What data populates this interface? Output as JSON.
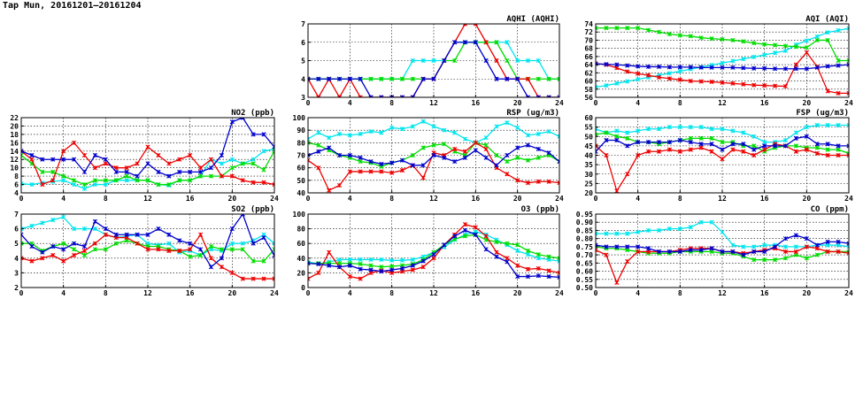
{
  "page": {
    "title": "Tap Mun, 20161201–20161204"
  },
  "colors": {
    "cyan": "#00e5ee",
    "green": "#00dd00",
    "red": "#ee0000",
    "blue": "#0000cc",
    "grid": "#000000"
  },
  "chart_data": [
    {
      "id": "aqhi",
      "type": "line",
      "title": "AQHI (AQHI)",
      "xlim": [
        0,
        24
      ],
      "ylim": [
        3,
        7
      ],
      "xticks": [
        0,
        4,
        8,
        12,
        16,
        20,
        24
      ],
      "yticks": [
        3,
        4,
        5,
        6,
        7
      ],
      "series": [
        {
          "color": "cyan",
          "y": [
            4,
            4,
            4,
            4,
            4,
            4,
            4,
            4,
            4,
            4,
            5,
            5,
            5,
            5,
            6,
            6,
            6,
            6,
            6,
            6,
            5,
            5,
            5,
            4,
            4
          ]
        },
        {
          "color": "green",
          "y": [
            4,
            4,
            4,
            4,
            4,
            4,
            4,
            4,
            4,
            4,
            4,
            4,
            4,
            5,
            5,
            6,
            6,
            6,
            6,
            5,
            4,
            4,
            4,
            4,
            4
          ]
        },
        {
          "color": "red",
          "y": [
            4,
            3,
            4,
            3,
            4,
            3,
            3,
            3,
            3,
            3,
            3,
            4,
            4,
            5,
            6,
            7,
            7,
            6,
            5,
            4,
            4,
            4,
            3,
            3,
            3
          ]
        },
        {
          "color": "blue",
          "y": [
            4,
            4,
            4,
            4,
            4,
            4,
            3,
            3,
            3,
            3,
            3,
            4,
            4,
            5,
            6,
            6,
            6,
            5,
            4,
            4,
            4,
            3,
            3,
            3,
            3
          ]
        }
      ]
    },
    {
      "id": "aqi",
      "type": "line",
      "title": "AQI (AQI)",
      "xlim": [
        0,
        24
      ],
      "ylim": [
        56,
        74
      ],
      "xticks": [
        0,
        4,
        8,
        12,
        16,
        20,
        24
      ],
      "yticks": [
        56,
        58,
        60,
        62,
        64,
        66,
        68,
        70,
        72,
        74
      ],
      "series": [
        {
          "color": "cyan",
          "y": [
            58.5,
            58.9,
            59.4,
            59.9,
            60.4,
            60.9,
            61.4,
            61.9,
            62.4,
            62.9,
            63.4,
            63.9,
            64.4,
            64.9,
            65.4,
            65.9,
            66.4,
            66.9,
            67.4,
            68.9,
            69.9,
            70.9,
            71.9,
            72.4,
            72.9
          ]
        },
        {
          "color": "green",
          "y": [
            73,
            73,
            73,
            73,
            73,
            72.5,
            72,
            71.5,
            71.2,
            71,
            70.6,
            70.4,
            70.2,
            70,
            69.7,
            69.3,
            69,
            68.8,
            68.6,
            68.4,
            68.2,
            70,
            70,
            65,
            65
          ]
        },
        {
          "color": "red",
          "y": [
            64.3,
            64,
            63.2,
            62.3,
            61.8,
            61.4,
            60.9,
            60.6,
            60.3,
            60,
            59.9,
            59.8,
            59.6,
            59.4,
            59.2,
            59,
            58.9,
            58.8,
            58.7,
            64,
            67,
            63.5,
            57.5,
            57,
            57
          ]
        },
        {
          "color": "blue",
          "y": [
            64.2,
            64.1,
            64,
            63.8,
            63.6,
            63.5,
            63.5,
            63.4,
            63.4,
            63.4,
            63.3,
            63.3,
            63.3,
            63.3,
            63.2,
            63.1,
            63.1,
            63,
            63,
            63,
            63,
            63.3,
            63.6,
            63.8,
            64
          ]
        }
      ]
    },
    {
      "id": "no2",
      "type": "line",
      "title": "NO2 (ppb)",
      "xlim": [
        0,
        24
      ],
      "ylim": [
        4,
        22
      ],
      "xticks": [
        0,
        4,
        8,
        12,
        16,
        20,
        24
      ],
      "yticks": [
        4,
        6,
        8,
        10,
        12,
        14,
        16,
        18,
        20,
        22
      ],
      "series": [
        {
          "color": "cyan",
          "y": [
            6.2,
            6,
            6.4,
            6.7,
            7,
            6,
            5,
            6,
            6,
            7,
            7,
            7,
            7,
            6,
            5.8,
            7,
            7,
            8,
            12,
            11,
            12,
            11,
            12,
            14,
            14.5
          ]
        },
        {
          "color": "green",
          "y": [
            13,
            11,
            9,
            9,
            8,
            7,
            6,
            7,
            7,
            7,
            8,
            7,
            7,
            6,
            6,
            7,
            7,
            8,
            8,
            8,
            10,
            11,
            11,
            9.5,
            14
          ]
        },
        {
          "color": "red",
          "y": [
            14,
            12,
            6,
            7,
            14,
            16,
            13,
            10,
            11,
            10,
            10,
            11,
            15,
            13,
            11,
            12,
            13,
            10,
            12,
            8,
            8,
            7,
            6.5,
            6.5,
            6
          ]
        },
        {
          "color": "blue",
          "y": [
            14,
            13,
            12,
            12,
            12,
            12,
            9,
            13,
            12,
            9,
            9,
            8,
            11,
            9,
            8,
            9,
            9,
            9,
            10,
            13,
            21,
            22,
            18,
            18,
            15
          ]
        }
      ]
    },
    {
      "id": "rsp",
      "type": "line",
      "title": "RSP (ug/m3)",
      "xlim": [
        0,
        24
      ],
      "ylim": [
        40,
        100
      ],
      "xticks": [
        0,
        4,
        8,
        12,
        16,
        20,
        24
      ],
      "yticks": [
        40,
        50,
        60,
        70,
        80,
        90,
        100
      ],
      "series": [
        {
          "color": "cyan",
          "y": [
            83,
            88,
            84,
            87,
            86,
            87,
            89,
            88,
            92,
            91,
            93,
            97,
            93,
            90,
            88,
            83,
            80,
            84,
            93,
            96,
            92,
            86,
            87,
            89,
            85
          ]
        },
        {
          "color": "green",
          "y": [
            80,
            78,
            74,
            70,
            68,
            65,
            64,
            61,
            64,
            66,
            70,
            76,
            78,
            79,
            73,
            70,
            80,
            78,
            70,
            65,
            68,
            66,
            68,
            70,
            65
          ]
        },
        {
          "color": "red",
          "y": [
            66,
            60,
            42,
            46,
            57,
            57,
            57,
            57,
            56,
            58,
            62,
            52,
            72,
            70,
            75,
            73,
            80,
            75,
            60,
            55,
            50,
            48,
            49,
            49,
            48
          ]
        },
        {
          "color": "blue",
          "y": [
            70,
            73,
            76,
            70,
            70,
            68,
            65,
            63,
            64,
            66,
            62,
            62,
            70,
            68,
            65,
            68,
            74,
            68,
            62,
            70,
            76,
            78,
            75,
            72,
            65
          ]
        }
      ]
    },
    {
      "id": "fsp",
      "type": "line",
      "title": "FSP (ug/m3)",
      "xlim": [
        0,
        24
      ],
      "ylim": [
        20,
        60
      ],
      "xticks": [
        0,
        4,
        8,
        12,
        16,
        20,
        24
      ],
      "yticks": [
        20,
        25,
        30,
        35,
        40,
        45,
        50,
        55,
        60
      ],
      "series": [
        {
          "color": "cyan",
          "y": [
            54,
            52,
            53,
            52,
            53,
            54,
            54,
            55,
            55,
            55,
            55,
            54,
            54,
            53,
            52,
            50,
            47,
            47,
            48,
            52,
            55,
            56,
            56,
            56,
            56
          ]
        },
        {
          "color": "green",
          "y": [
            51,
            52,
            50,
            49,
            47,
            47,
            46,
            47,
            48,
            49,
            49,
            49,
            47,
            47,
            45,
            45,
            42,
            44,
            45,
            45,
            44,
            44,
            43,
            43,
            41
          ]
        },
        {
          "color": "red",
          "y": [
            45,
            40,
            21,
            30,
            40,
            42,
            42,
            43,
            42,
            43,
            44,
            42,
            38,
            43,
            42,
            40,
            43,
            46,
            45,
            42,
            43,
            41,
            40,
            40,
            40
          ]
        },
        {
          "color": "blue",
          "y": [
            42,
            48,
            48,
            45,
            47,
            47,
            47,
            47,
            48,
            47,
            46,
            46,
            43,
            46,
            46,
            43,
            45,
            45,
            45,
            49,
            50,
            46,
            46,
            45,
            45
          ]
        }
      ]
    },
    {
      "id": "so2",
      "type": "line",
      "title": "SO2 (ppb)",
      "xlim": [
        0,
        24
      ],
      "ylim": [
        2,
        7
      ],
      "xticks": [
        0,
        4,
        8,
        12,
        16,
        20,
        24
      ],
      "yticks": [
        2,
        3,
        4,
        5,
        6,
        7
      ],
      "series": [
        {
          "color": "cyan",
          "y": [
            6,
            6.2,
            6.4,
            6.6,
            6.8,
            6,
            6,
            6,
            5.6,
            5.4,
            5.5,
            5.6,
            5,
            4.9,
            5,
            4.4,
            4.5,
            4.2,
            4.6,
            4.5,
            5,
            5,
            5.2,
            5.6,
            5
          ]
        },
        {
          "color": "green",
          "y": [
            5,
            5,
            4.5,
            4.8,
            5,
            4.6,
            4.2,
            4.6,
            4.6,
            5,
            5.2,
            5,
            4.8,
            4.8,
            4.6,
            4.5,
            4.1,
            4.2,
            4.8,
            4.6,
            4.6,
            4.6,
            3.8,
            3.8,
            4.6
          ]
        },
        {
          "color": "red",
          "y": [
            4,
            3.8,
            4,
            4.2,
            3.8,
            4.2,
            4.5,
            5,
            5.6,
            5.4,
            5.4,
            5,
            4.6,
            4.6,
            4.5,
            4.5,
            4.6,
            5.6,
            4,
            3.4,
            3,
            2.6,
            2.6,
            2.6,
            2.6
          ]
        },
        {
          "color": "blue",
          "y": [
            5.6,
            4.8,
            4.4,
            4.8,
            4.6,
            5,
            4.8,
            6.5,
            6,
            5.6,
            5.6,
            5.6,
            5.6,
            6,
            5.6,
            5.2,
            5,
            4.6,
            3.4,
            4,
            6,
            7,
            5,
            5.4,
            4.2
          ]
        }
      ]
    },
    {
      "id": "o3",
      "type": "line",
      "title": "O3 (ppb)",
      "xlim": [
        0,
        24
      ],
      "ylim": [
        0,
        100
      ],
      "xticks": [
        0,
        4,
        8,
        12,
        16,
        20,
        24
      ],
      "yticks": [
        0,
        20,
        40,
        60,
        80,
        100
      ],
      "series": [
        {
          "color": "cyan",
          "y": [
            35,
            32,
            35,
            38,
            38,
            38,
            38,
            38,
            37,
            37,
            38,
            42,
            48,
            55,
            65,
            72,
            76,
            72,
            65,
            58,
            50,
            45,
            40,
            38,
            36
          ]
        },
        {
          "color": "green",
          "y": [
            33,
            33,
            33,
            33,
            33,
            32,
            30,
            28,
            29,
            30,
            32,
            38,
            48,
            58,
            66,
            70,
            72,
            65,
            62,
            60,
            58,
            50,
            45,
            42,
            40
          ]
        },
        {
          "color": "red",
          "y": [
            12,
            20,
            48,
            28,
            15,
            12,
            20,
            23,
            20,
            22,
            24,
            28,
            40,
            58,
            72,
            86,
            82,
            70,
            48,
            40,
            30,
            25,
            26,
            23,
            20
          ]
        },
        {
          "color": "blue",
          "y": [
            33,
            32,
            30,
            28,
            30,
            25,
            24,
            22,
            24,
            26,
            30,
            36,
            45,
            58,
            70,
            78,
            72,
            52,
            42,
            35,
            15,
            15,
            16,
            15,
            14
          ]
        }
      ]
    },
    {
      "id": "co",
      "type": "line",
      "title": "CO (ppm)",
      "xlim": [
        0,
        24
      ],
      "ylim": [
        0.5,
        0.95
      ],
      "xticks": [
        0,
        4,
        8,
        12,
        16,
        20,
        24
      ],
      "yticks": [
        0.5,
        0.55,
        0.6,
        0.65,
        0.7,
        0.75,
        0.8,
        0.85,
        0.9,
        0.95
      ],
      "series": [
        {
          "color": "cyan",
          "y": [
            0.83,
            0.83,
            0.83,
            0.83,
            0.84,
            0.85,
            0.85,
            0.86,
            0.86,
            0.87,
            0.9,
            0.9,
            0.84,
            0.76,
            0.75,
            0.75,
            0.76,
            0.76,
            0.75,
            0.75,
            0.75,
            0.76,
            0.76,
            0.76,
            0.75
          ]
        },
        {
          "color": "green",
          "y": [
            0.75,
            0.74,
            0.74,
            0.73,
            0.72,
            0.71,
            0.71,
            0.71,
            0.72,
            0.72,
            0.72,
            0.72,
            0.71,
            0.71,
            0.69,
            0.67,
            0.67,
            0.67,
            0.68,
            0.7,
            0.68,
            0.7,
            0.72,
            0.72,
            0.72
          ]
        },
        {
          "color": "red",
          "y": [
            0.73,
            0.7,
            0.53,
            0.66,
            0.72,
            0.72,
            0.72,
            0.72,
            0.73,
            0.74,
            0.74,
            0.74,
            0.72,
            0.72,
            0.71,
            0.72,
            0.73,
            0.74,
            0.72,
            0.72,
            0.75,
            0.74,
            0.72,
            0.72,
            0.71
          ]
        },
        {
          "color": "blue",
          "y": [
            0.76,
            0.75,
            0.75,
            0.75,
            0.75,
            0.74,
            0.72,
            0.72,
            0.72,
            0.73,
            0.73,
            0.74,
            0.72,
            0.72,
            0.7,
            0.72,
            0.72,
            0.75,
            0.8,
            0.82,
            0.8,
            0.76,
            0.78,
            0.78,
            0.77
          ]
        }
      ]
    }
  ]
}
